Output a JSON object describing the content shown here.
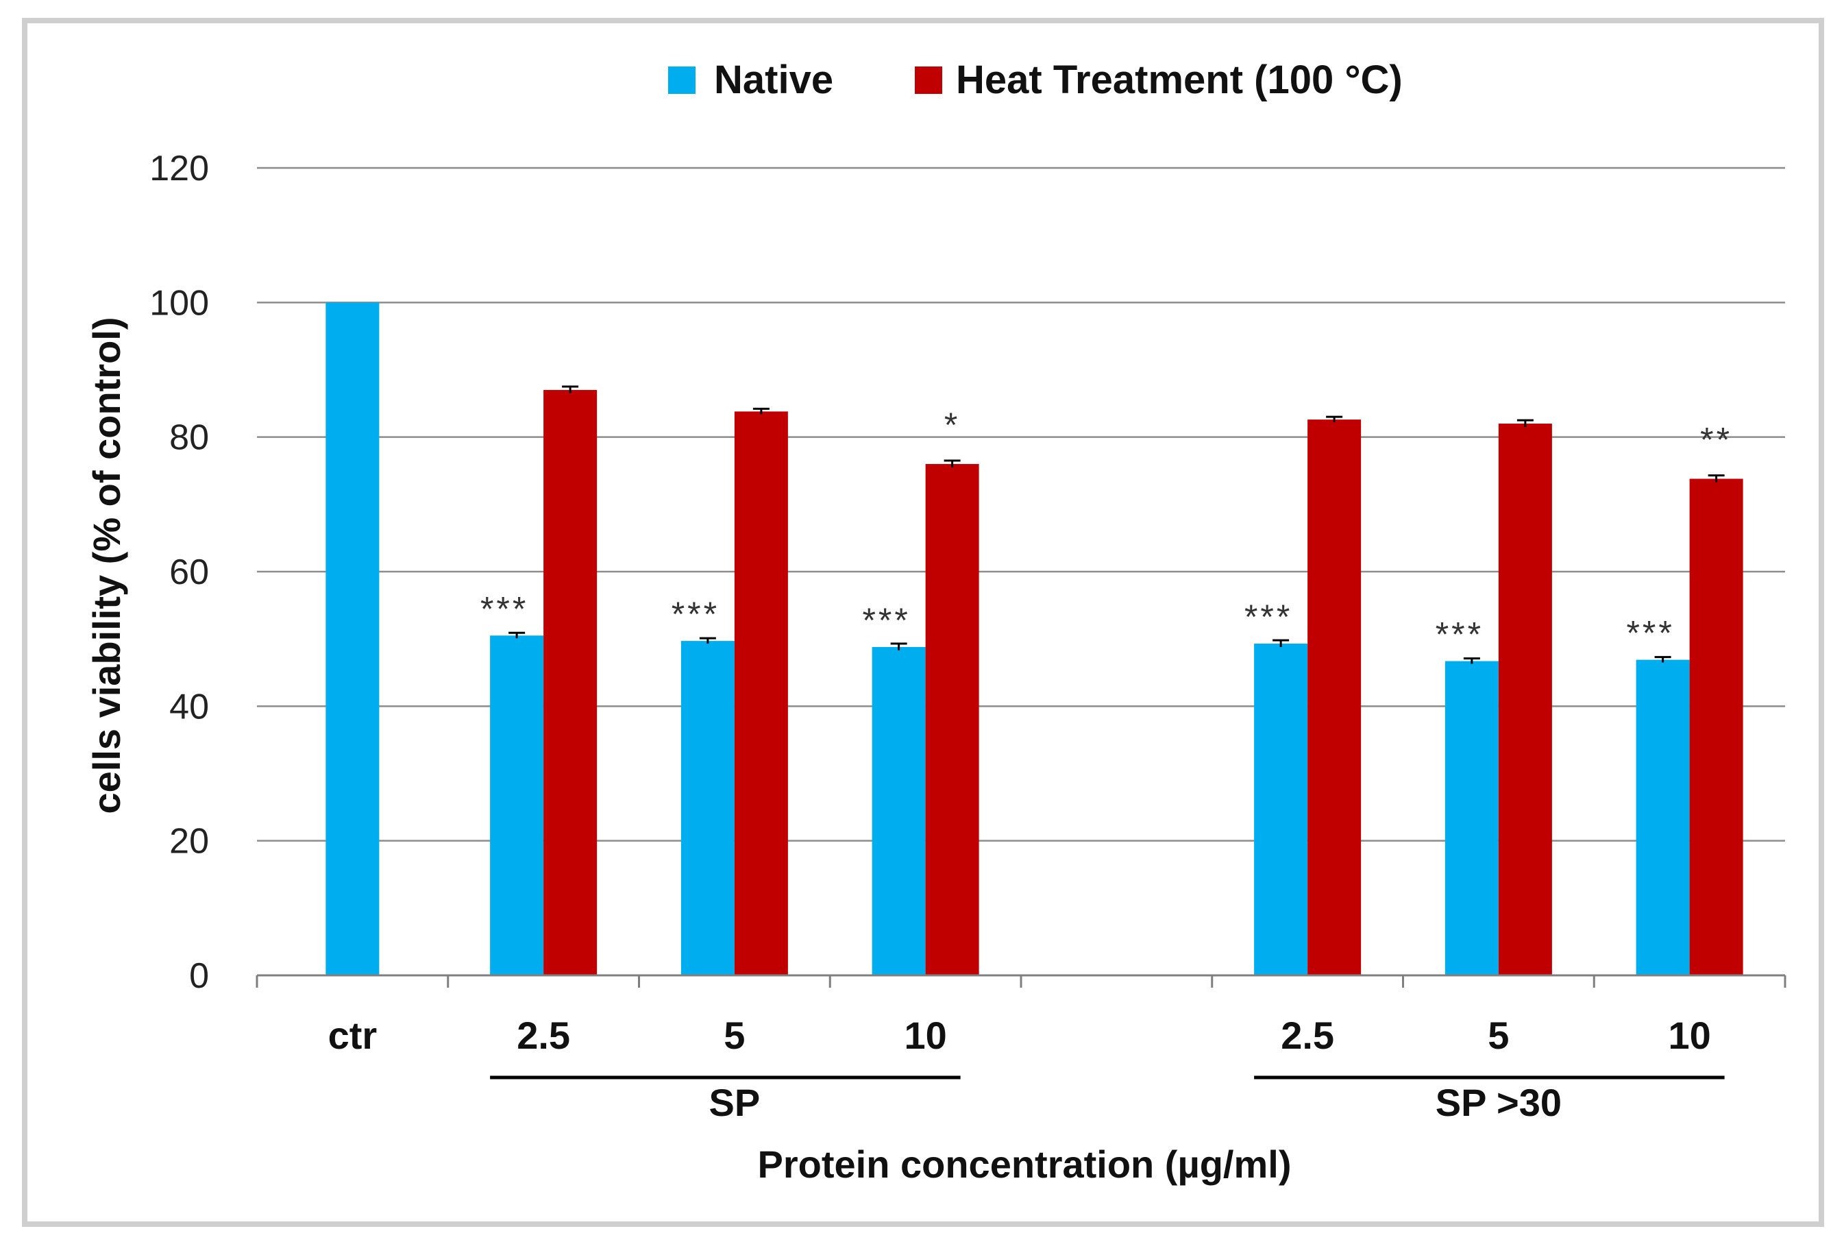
{
  "chart_data": {
    "type": "bar",
    "title": "",
    "xlabel": "Protein concentration (µg/ml)",
    "ylabel": "cells viability (% of control)",
    "ylim": [
      0,
      120
    ],
    "yticks": [
      0,
      20,
      40,
      60,
      80,
      100,
      120
    ],
    "grid": true,
    "legend_position": "top",
    "categories": [
      "ctr",
      "2.5",
      "5",
      "10",
      "",
      "2.5",
      "5",
      "10"
    ],
    "groups": [
      {
        "label": "SP",
        "from": 1,
        "to": 3
      },
      {
        "label": "SP >30",
        "from": 5,
        "to": 7
      }
    ],
    "series": [
      {
        "name": "Native",
        "color": "#00AEEF",
        "values": [
          100,
          50.5,
          49.7,
          48.8,
          null,
          49.3,
          46.7,
          46.9
        ],
        "errors": [
          0,
          0.2,
          0.2,
          0.3,
          null,
          0.3,
          0.2,
          0.2
        ],
        "significance": [
          "",
          "***",
          "***",
          "***",
          "",
          "***",
          "***",
          "***"
        ]
      },
      {
        "name": "Heat Treatment (100 °C)",
        "color": "#C00000",
        "values": [
          null,
          87.0,
          83.8,
          76.0,
          null,
          82.6,
          82.0,
          73.8
        ],
        "errors": [
          null,
          0.3,
          0.2,
          0.3,
          null,
          0.2,
          0.3,
          0.3
        ],
        "significance": [
          "",
          "",
          "",
          "*",
          "",
          "",
          "",
          "**"
        ]
      }
    ]
  },
  "legend": {
    "native_label": "Native",
    "heat_label": "Heat Treatment (100 °C)"
  }
}
